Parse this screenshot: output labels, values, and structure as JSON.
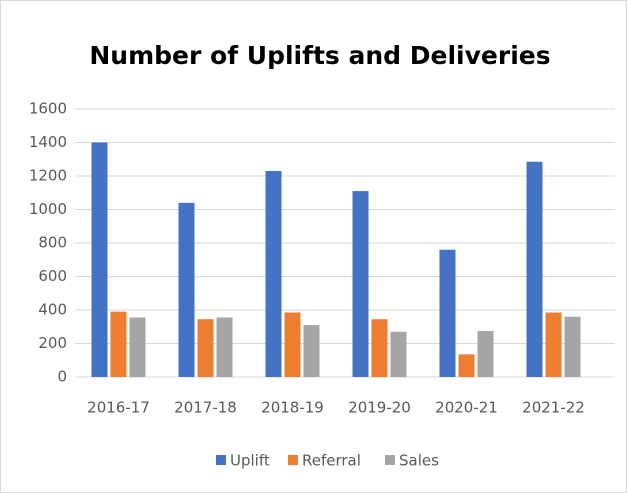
{
  "chart_data": {
    "type": "bar",
    "title": "Number of Uplifts and Deliveries",
    "categories": [
      "2016-17",
      "2017-18",
      "2018-19",
      "2019-20",
      "2020-21",
      "2021-22"
    ],
    "series": [
      {
        "name": "Uplift",
        "color": "#4472c4",
        "values": [
          1400,
          1040,
          1230,
          1110,
          760,
          1285
        ]
      },
      {
        "name": "Referral",
        "color": "#ed7d31",
        "values": [
          390,
          345,
          385,
          345,
          135,
          385
        ]
      },
      {
        "name": "Sales",
        "color": "#a5a5a5",
        "values": [
          355,
          355,
          310,
          270,
          275,
          360
        ]
      }
    ],
    "ylim": [
      0,
      1600
    ],
    "yticks": [
      0,
      200,
      400,
      600,
      800,
      1000,
      1200,
      1400,
      1600
    ],
    "grid": true,
    "legend": "bottom"
  }
}
